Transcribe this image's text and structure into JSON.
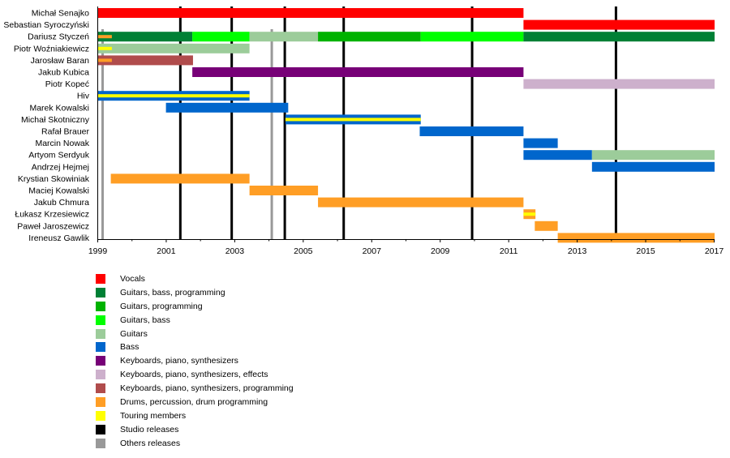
{
  "chart_data": {
    "type": "timeline",
    "title": "",
    "xlabel": "",
    "ylabel": "",
    "xlim": [
      1999,
      2017
    ],
    "x_ticks": [
      "1999",
      "2001",
      "2003",
      "2005",
      "2007",
      "2009",
      "2011",
      "2013",
      "2015",
      "2017"
    ],
    "x_tick_values": [
      1999,
      2001,
      2003,
      2005,
      2007,
      2009,
      2011,
      2013,
      2015,
      2017
    ],
    "minor_ticks": [
      2000,
      2002,
      2004,
      2006,
      2008,
      2010,
      2012,
      2014,
      2016
    ],
    "roles": {
      "vocals": {
        "label": "Vocals",
        "color": "#ff0000"
      },
      "gbp": {
        "label": "Guitars, bass, programming",
        "color": "#008035"
      },
      "gp": {
        "label": "Guitars, programming",
        "color": "#00b200"
      },
      "gb": {
        "label": "Guitars, bass",
        "color": "#00ff00"
      },
      "guitars": {
        "label": "Guitars",
        "color": "#9ccc9a"
      },
      "bass": {
        "label": "Bass",
        "color": "#0066cc"
      },
      "keys": {
        "label": "Keyboards, piano, synthesizers",
        "color": "#770077"
      },
      "keysfx": {
        "label": "Keyboards, piano, synthesizers, effects",
        "color": "#cdb0cc"
      },
      "keysprog": {
        "label": "Keyboards, piano, synthesizers, programming",
        "color": "#b04c4c"
      },
      "drums": {
        "label": "Drums, percussion, drum programming",
        "color": "#ff9e25"
      },
      "touring": {
        "label": "Touring members",
        "color": "#ffff00"
      },
      "studio": {
        "label": "Studio releases",
        "color": "#000000"
      },
      "others": {
        "label": "Others releases",
        "color": "#999999"
      }
    },
    "legend_order": [
      "vocals",
      "gbp",
      "gp",
      "gb",
      "guitars",
      "bass",
      "keys",
      "keysfx",
      "keysprog",
      "drums",
      "touring",
      "studio",
      "others"
    ],
    "members": [
      {
        "name": "Michał Senajko",
        "bars": [
          {
            "role": "vocals",
            "start": 1999.0,
            "end": 2011.42
          }
        ]
      },
      {
        "name": "Sebastian Syroczyński",
        "bars": [
          {
            "role": "vocals",
            "start": 2011.42,
            "end": 2017.0
          }
        ]
      },
      {
        "name": "Dariusz Styczeń",
        "bars": [
          {
            "role": "gbp",
            "start": 1999.0,
            "end": 2001.75
          },
          {
            "role": "gb",
            "start": 2001.75,
            "end": 2003.42
          },
          {
            "role": "guitars",
            "start": 2003.42,
            "end": 2005.42
          },
          {
            "role": "gp",
            "start": 2005.42,
            "end": 2008.42
          },
          {
            "role": "gb",
            "start": 2008.42,
            "end": 2011.42
          },
          {
            "role": "gbp",
            "start": 2011.42,
            "end": 2017.0
          }
        ],
        "overlays": [
          {
            "role": "drums",
            "start": 1999.0,
            "end": 1999.4
          }
        ]
      },
      {
        "name": "Piotr Woźniakiewicz",
        "bars": [
          {
            "role": "guitars",
            "start": 1999.0,
            "end": 2003.42
          }
        ],
        "overlays": [
          {
            "role": "touring",
            "start": 1999.0,
            "end": 1999.4
          }
        ]
      },
      {
        "name": "Jarosław Baran",
        "bars": [
          {
            "role": "keysprog",
            "start": 1999.0,
            "end": 2001.77
          }
        ],
        "overlays": [
          {
            "role": "drums",
            "start": 1999.0,
            "end": 1999.4
          }
        ]
      },
      {
        "name": "Jakub Kubica",
        "bars": [
          {
            "role": "keys",
            "start": 2001.75,
            "end": 2011.42
          }
        ]
      },
      {
        "name": "Piotr Kopeć",
        "bars": [
          {
            "role": "keysfx",
            "start": 2011.42,
            "end": 2017.0
          }
        ]
      },
      {
        "name": "Hiv",
        "bars": [
          {
            "role": "bass",
            "start": 1999.0,
            "end": 2003.42
          }
        ],
        "stripe": "touring"
      },
      {
        "name": "Marek Kowalski",
        "bars": [
          {
            "role": "bass",
            "start": 2000.98,
            "end": 2004.55
          }
        ]
      },
      {
        "name": "Michał Skotniczny",
        "bars": [
          {
            "role": "bass",
            "start": 2004.47,
            "end": 2008.42
          }
        ],
        "stripe": "touring"
      },
      {
        "name": "Rafał Brauer",
        "bars": [
          {
            "role": "bass",
            "start": 2008.39,
            "end": 2011.42
          }
        ]
      },
      {
        "name": "Marcin Nowak",
        "bars": [
          {
            "role": "bass",
            "start": 2011.42,
            "end": 2012.42
          }
        ]
      },
      {
        "name": "Artyom Serdyuk",
        "bars": [
          {
            "role": "bass",
            "start": 2011.42,
            "end": 2013.42
          },
          {
            "role": "guitars",
            "start": 2013.42,
            "end": 2017.0
          }
        ]
      },
      {
        "name": "Andrzej Hejmej",
        "bars": [
          {
            "role": "bass",
            "start": 2013.42,
            "end": 2017.0
          }
        ]
      },
      {
        "name": "Krystian Skowiniak",
        "bars": [
          {
            "role": "drums",
            "start": 1999.37,
            "end": 2003.42
          }
        ]
      },
      {
        "name": "Maciej Kowalski",
        "bars": [
          {
            "role": "drums",
            "start": 2003.42,
            "end": 2005.42
          }
        ]
      },
      {
        "name": "Jakub Chmura",
        "bars": [
          {
            "role": "drums",
            "start": 2005.42,
            "end": 2011.42
          }
        ]
      },
      {
        "name": "Łukasz Krzesiewicz",
        "bars": [
          {
            "role": "drums",
            "start": 2011.42,
            "end": 2011.77
          }
        ],
        "stripe": "touring"
      },
      {
        "name": "Paweł Jaroszewicz",
        "bars": [
          {
            "role": "drums",
            "start": 2011.75,
            "end": 2012.42
          }
        ]
      },
      {
        "name": "Ireneusz Gawlik",
        "bars": [
          {
            "role": "drums",
            "start": 2012.42,
            "end": 2017.0
          }
        ]
      }
    ],
    "studio_releases": [
      2001.4,
      2002.9,
      2004.45,
      2006.17,
      2009.92,
      2014.12
    ],
    "other_releases": [
      1999.13,
      2004.07
    ]
  }
}
